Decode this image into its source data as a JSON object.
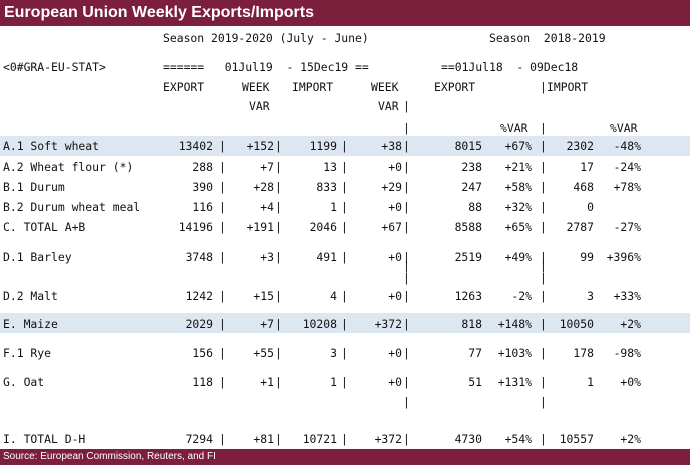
{
  "title": "European Union Weekly Exports/Imports",
  "header": {
    "season_current": "Season 2019-2020 (July - June)",
    "season_prior": "Season  2018-2019",
    "ric": "<0#GRA-EU-STAT>",
    "range_current": "======   01Jul19  - 15Dec19 ==",
    "range_prior": "==01Jul18  - 09Dec18",
    "col_export": "EXPORT",
    "col_week": "WEEK",
    "col_var": "VAR",
    "col_import": "IMPORT",
    "col_week2": "WEEK",
    "col_var2": "VAR",
    "col_export_prior": "EXPORT",
    "col_import_prior": "IMPORT",
    "col_pctvar": "%VAR",
    "col_pctvar2": "%VAR"
  },
  "rows": [
    {
      "label": "A.1 Soft wheat",
      "export": "13402",
      "week_var": "+152",
      "import": "1199",
      "week_var2": "+38",
      "export_prior": "8015",
      "pct_var": "+67%",
      "import_prior": "2302",
      "pct_var2": "-48%"
    },
    {
      "label": "A.2 Wheat flour (*)",
      "export": "288",
      "week_var": "+7",
      "import": "13",
      "week_var2": "+0",
      "export_prior": "238",
      "pct_var": "+21%",
      "import_prior": "17",
      "pct_var2": "-24%"
    },
    {
      "label": "B.1 Durum",
      "export": "390",
      "week_var": "+28",
      "import": "833",
      "week_var2": "+29",
      "export_prior": "247",
      "pct_var": "+58%",
      "import_prior": "468",
      "pct_var2": "+78%"
    },
    {
      "label": "B.2 Durum wheat meal",
      "export": "116",
      "week_var": "+4",
      "import": "1",
      "week_var2": "+0",
      "export_prior": "88",
      "pct_var": "+32%",
      "import_prior": "0",
      "pct_var2": ""
    },
    {
      "label": "C. TOTAL A+B",
      "export": "14196",
      "week_var": "+191",
      "import": "2046",
      "week_var2": "+67",
      "export_prior": "8588",
      "pct_var": "+65%",
      "import_prior": "2787",
      "pct_var2": "-27%"
    },
    {
      "label": "D.1 Barley",
      "export": "3748",
      "week_var": "+3",
      "import": "491",
      "week_var2": "+0",
      "export_prior": "2519",
      "pct_var": "+49%",
      "import_prior": "99",
      "pct_var2": "+396%"
    },
    {
      "label": "D.2 Malt",
      "export": "1242",
      "week_var": "+15",
      "import": "4",
      "week_var2": "+0",
      "export_prior": "1263",
      "pct_var": "-2%",
      "import_prior": "3",
      "pct_var2": "+33%"
    },
    {
      "label": "E. Maize",
      "export": "2029",
      "week_var": "+7",
      "import": "10208",
      "week_var2": "+372",
      "export_prior": "818",
      "pct_var": "+148%",
      "import_prior": "10050",
      "pct_var2": "+2%"
    },
    {
      "label": "F.1 Rye",
      "export": "156",
      "week_var": "+55",
      "import": "3",
      "week_var2": "+0",
      "export_prior": "77",
      "pct_var": "+103%",
      "import_prior": "178",
      "pct_var2": "-98%"
    },
    {
      "label": "G. Oat",
      "export": "118",
      "week_var": "+1",
      "import": "1",
      "week_var2": "+0",
      "export_prior": "51",
      "pct_var": "+131%",
      "import_prior": "1",
      "pct_var2": "+0%"
    },
    {
      "label": "I. TOTAL D-H",
      "export": "7294",
      "week_var": "+81",
      "import": "10721",
      "week_var2": "+372",
      "export_prior": "4730",
      "pct_var": "+54%",
      "import_prior": "10557",
      "pct_var2": "+2%"
    }
  ],
  "footer": "Source: European Commission, Reuters, and FI",
  "colors": {
    "brand": "#7b1f3d",
    "highlight": "#dde7f1"
  }
}
